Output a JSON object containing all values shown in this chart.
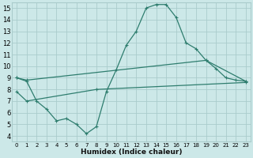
{
  "xlabel": "Humidex (Indice chaleur)",
  "bg_color": "#cce8e8",
  "grid_color": "#aacccc",
  "line_color": "#2e7d6e",
  "xlim": [
    -0.5,
    23.5
  ],
  "ylim": [
    3.5,
    15.5
  ],
  "xticks": [
    0,
    1,
    2,
    3,
    4,
    5,
    6,
    7,
    8,
    9,
    10,
    11,
    12,
    13,
    14,
    15,
    16,
    17,
    18,
    19,
    20,
    21,
    22,
    23
  ],
  "yticks": [
    4,
    5,
    6,
    7,
    8,
    9,
    10,
    11,
    12,
    13,
    14,
    15
  ],
  "line1_x": [
    0,
    1,
    2,
    3,
    4,
    5,
    6,
    7,
    8,
    9,
    10,
    11,
    12,
    13,
    14,
    15,
    16,
    17,
    18,
    19,
    20,
    21,
    22,
    23
  ],
  "line1_y": [
    9.0,
    8.7,
    7.0,
    6.3,
    5.3,
    5.5,
    5.0,
    4.2,
    4.8,
    7.8,
    9.7,
    11.8,
    13.0,
    15.0,
    15.3,
    15.3,
    14.2,
    12.0,
    11.5,
    10.5,
    9.8,
    9.0,
    8.8,
    8.7
  ],
  "line2_x": [
    0,
    1,
    19,
    23
  ],
  "line2_y": [
    9.0,
    8.8,
    10.5,
    8.7
  ],
  "line3_x": [
    0,
    1,
    8,
    23
  ],
  "line3_y": [
    7.8,
    7.0,
    8.0,
    8.6
  ]
}
